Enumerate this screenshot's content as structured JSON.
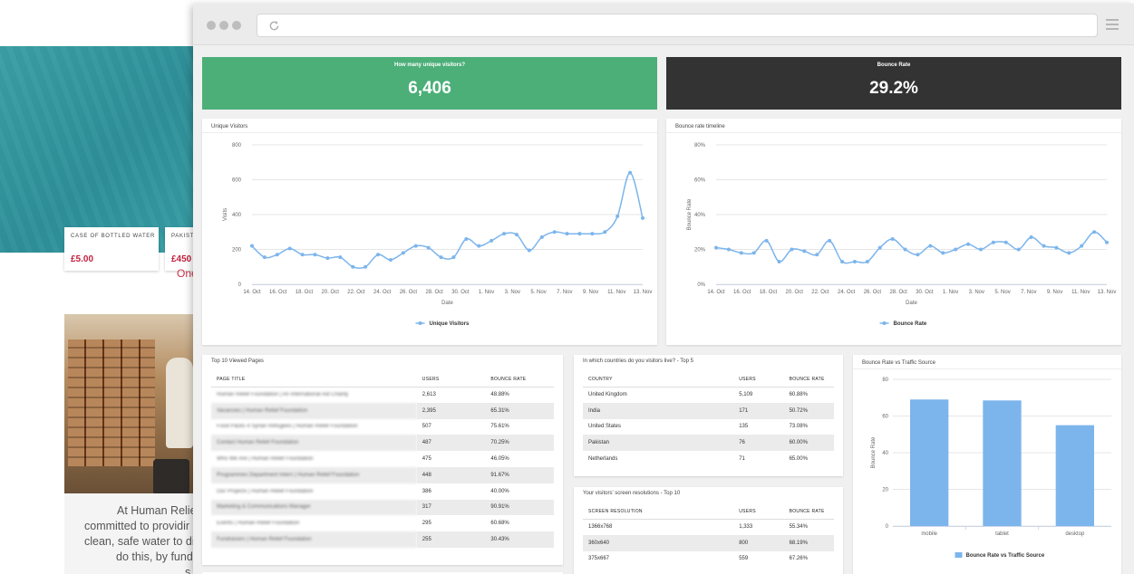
{
  "website": {
    "products": [
      {
        "name": "CASE OF BOTTLED WATER",
        "price": "£5.00"
      },
      {
        "name": "PAKISTA",
        "price": "£450"
      }
    ],
    "one_text": "One",
    "about_lines": [
      "At Human Relie",
      "committed to providir",
      "clean, safe water to di",
      "do this, by fund",
      "s"
    ]
  },
  "dashboard": {
    "kpis": [
      {
        "title": "How many unique visitors?",
        "value": "6,406",
        "color": "#4caf78"
      },
      {
        "title": "Bounce Rate",
        "value": "29.2%",
        "color": "#333333"
      }
    ],
    "top_pages": {
      "title": "Top 10 Viewed Pages",
      "columns": [
        "PAGE TITLE",
        "USERS",
        "BOUNCE RATE"
      ],
      "rows": [
        [
          "Human Relief Foundation | An International Aid Charity",
          "2,613",
          "48.88%"
        ],
        [
          "Vacancies | Human Relief Foundation",
          "2,395",
          "65.31%"
        ],
        [
          "Food Packs 4 Syrian Refugees | Human Relief Foundation",
          "507",
          "75.61%"
        ],
        [
          "Contact Human Relief Foundation",
          "487",
          "70.25%"
        ],
        [
          "Who We Are | Human Relief Foundation",
          "475",
          "46.05%"
        ],
        [
          "Programmes Department Intern | Human Relief Foundation",
          "448",
          "91.67%"
        ],
        [
          "Our Projects | Human Relief Foundation",
          "386",
          "40.00%"
        ],
        [
          "Marketing & Communications Manager",
          "317",
          "90.91%"
        ],
        [
          "Events | Human Relief Foundation",
          "295",
          "60.68%"
        ],
        [
          "Fundraisers | Human Relief Foundation",
          "255",
          "30.43%"
        ]
      ]
    },
    "countries": {
      "title": "In which countries do you visitors live? - Top 5",
      "columns": [
        "COUNTRY",
        "USERS",
        "BOUNCE RATE"
      ],
      "rows": [
        [
          "United Kingdom",
          "5,109",
          "60.88%"
        ],
        [
          "India",
          "171",
          "50.72%"
        ],
        [
          "United States",
          "135",
          "73.08%"
        ],
        [
          "Pakistan",
          "76",
          "60.00%"
        ],
        [
          "Netherlands",
          "71",
          "65.00%"
        ]
      ]
    },
    "resolutions": {
      "title": "Your visitors' screen resolutions - Top 10",
      "columns": [
        "SCREEN RESOLUTION",
        "USERS",
        "BOUNCE RATE"
      ],
      "rows": [
        [
          "1366x768",
          "1,333",
          "55.34%"
        ],
        [
          "360x640",
          "800",
          "68.19%"
        ],
        [
          "375x667",
          "559",
          "67.26%"
        ]
      ]
    }
  },
  "chart_data": [
    {
      "type": "line",
      "title": "Unique Visitors",
      "xlabel": "Date",
      "ylabel": "Visits",
      "ylim": [
        0,
        800
      ],
      "yticks": [
        "0",
        "200",
        "400",
        "600",
        "800"
      ],
      "x_tick_labels": [
        "14. Oct",
        "16. Oct",
        "18. Oct",
        "20. Oct",
        "22. Oct",
        "24. Oct",
        "26. Oct",
        "28. Oct",
        "30. Oct",
        "1. Nov",
        "3. Nov",
        "5. Nov",
        "7. Nov",
        "9. Nov",
        "11. Nov",
        "13. Nov"
      ],
      "legend": "bottom",
      "color": "#7cb5ec",
      "series": [
        {
          "name": "Unique Visitors",
          "values": [
            220,
            155,
            170,
            205,
            170,
            170,
            150,
            155,
            100,
            100,
            170,
            140,
            180,
            220,
            210,
            155,
            155,
            260,
            220,
            250,
            290,
            285,
            195,
            270,
            300,
            290,
            290,
            290,
            300,
            390,
            640,
            380
          ]
        }
      ]
    },
    {
      "type": "line",
      "title": "Bounce rate timeline",
      "xlabel": "Date",
      "ylabel": "Bounce Rate",
      "ylim": [
        0,
        80
      ],
      "yticks": [
        "0%",
        "20%",
        "40%",
        "60%",
        "80%"
      ],
      "x_tick_labels": [
        "14. Oct",
        "16. Oct",
        "18. Oct",
        "20. Oct",
        "22. Oct",
        "24. Oct",
        "26. Oct",
        "28. Oct",
        "30. Oct",
        "1. Nov",
        "3. Nov",
        "5. Nov",
        "7. Nov",
        "9. Nov",
        "11. Nov",
        "13. Nov"
      ],
      "legend": "bottom",
      "color": "#7cb5ec",
      "series": [
        {
          "name": "Bounce Rate",
          "values": [
            21,
            20,
            18,
            18,
            25,
            13,
            20,
            19,
            17,
            25,
            13,
            13,
            13,
            21,
            26,
            20,
            17,
            22,
            18,
            20,
            23,
            20,
            24,
            24,
            20,
            27,
            22,
            21,
            18,
            22,
            30,
            24
          ]
        }
      ]
    },
    {
      "type": "bar",
      "title": "Bounce Rate vs Traffic Source",
      "categories": [
        "mobile",
        "tablet",
        "desktop"
      ],
      "ylabel": "Bounce Rate",
      "ylim": [
        0,
        80
      ],
      "yticks": [
        "0",
        "20",
        "40",
        "60",
        "80"
      ],
      "legend": "bottom",
      "color": "#7cb5ec",
      "series": [
        {
          "name": "Bounce Rate vs Traffic Source",
          "values": [
            69,
            68.5,
            55
          ]
        }
      ]
    }
  ]
}
